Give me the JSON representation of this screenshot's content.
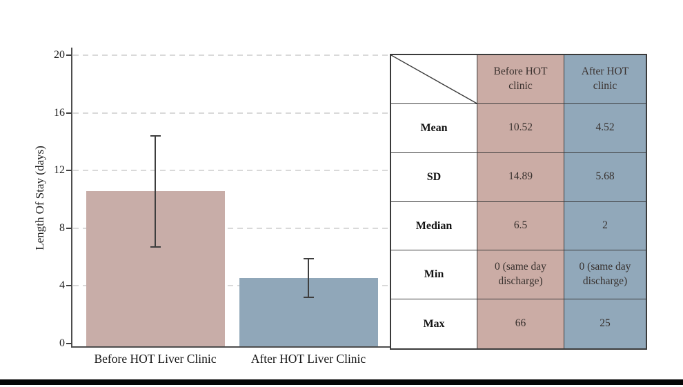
{
  "chart_data": {
    "type": "bar",
    "title": "",
    "xlabel": "",
    "ylabel": "Length Of Stay (days)",
    "ylim": [
      0,
      20
    ],
    "yticks": [
      0,
      4,
      8,
      12,
      16,
      20
    ],
    "grid": "horizontal-dashed",
    "legend": "none",
    "categories": [
      "Before HOT Liver Clinic",
      "After HOT Liver Clinic"
    ],
    "values": [
      10.52,
      4.52
    ],
    "error_bars": [
      {
        "low": 6.6,
        "high": 14.4
      },
      {
        "low": 3.1,
        "high": 5.9
      }
    ],
    "bar_colors": [
      "#c8ada8",
      "#90a7b9"
    ]
  },
  "table": {
    "header": {
      "corner": "",
      "col_before": "Before HOT clinic",
      "col_after": "After HOT clinic"
    },
    "rows": [
      {
        "label": "Mean",
        "before": "10.52",
        "after": "4.52"
      },
      {
        "label": "SD",
        "before": "14.89",
        "after": "5.68"
      },
      {
        "label": "Median",
        "before": "6.5",
        "after": "2"
      },
      {
        "label": "Min",
        "before": "0 (same day discharge)",
        "after": "0 (same day discharge)"
      },
      {
        "label": "Max",
        "before": "66",
        "after": "25"
      }
    ]
  },
  "colors": {
    "before_pink": "#c8ada8",
    "after_blue": "#90a7b9",
    "cell_pink": "#cbaca5",
    "cell_blue": "#91a8ba",
    "error_bar": "#3e3e3e",
    "axis": "#4d4d4d",
    "gridline": "#d9d9d9",
    "table_border": "#3a3a3a"
  }
}
